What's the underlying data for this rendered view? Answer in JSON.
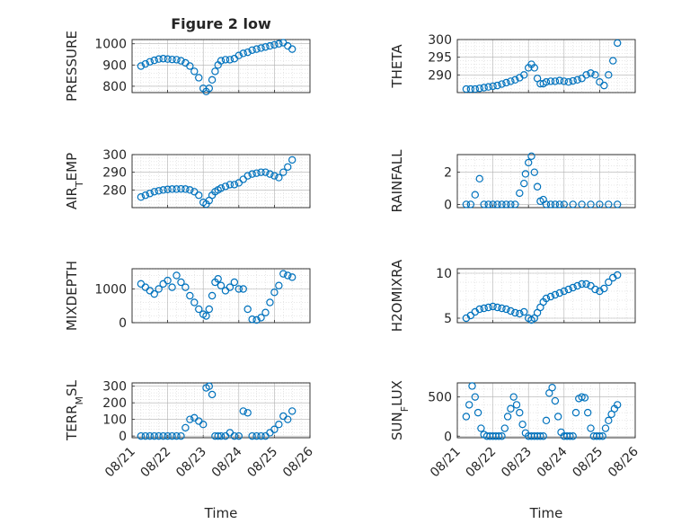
{
  "chart_data": [
    {
      "id": "pressure",
      "type": "scatter",
      "title": "Figure 2 low",
      "xlabel": "",
      "ylabel": "PRESSURE",
      "ylabel_sub": "",
      "ylabel_tail": "",
      "xlim": [
        "08/21",
        "08/26"
      ],
      "ylim": [
        770,
        1020
      ],
      "yticks": [
        800,
        900,
        1000
      ],
      "xticklabels": [
        "08/21",
        "08/22",
        "08/23",
        "08/24",
        "08/25",
        "08/26"
      ],
      "xticks_visible": false,
      "x": [
        "08/21 06:00",
        "08/21 09:00",
        "08/21 12:00",
        "08/21 15:00",
        "08/21 18:00",
        "08/21 21:00",
        "08/22 00:00",
        "08/22 03:00",
        "08/22 06:00",
        "08/22 09:00",
        "08/22 12:00",
        "08/22 15:00",
        "08/22 18:00",
        "08/22 21:00",
        "08/23 00:00",
        "08/23 02:00",
        "08/23 04:00",
        "08/23 06:00",
        "08/23 08:00",
        "08/23 10:00",
        "08/23 12:00",
        "08/23 15:00",
        "08/23 18:00",
        "08/23 21:00",
        "08/24 00:00",
        "08/24 03:00",
        "08/24 06:00",
        "08/24 09:00",
        "08/24 12:00",
        "08/24 15:00",
        "08/24 18:00",
        "08/24 21:00",
        "08/25 00:00",
        "08/25 03:00",
        "08/25 06:00",
        "08/25 09:00",
        "08/25 12:00"
      ],
      "y": [
        895,
        905,
        915,
        922,
        928,
        930,
        928,
        926,
        925,
        920,
        910,
        895,
        870,
        840,
        790,
        775,
        790,
        830,
        870,
        900,
        920,
        925,
        925,
        930,
        945,
        955,
        960,
        970,
        975,
        980,
        985,
        990,
        995,
        1000,
        1005,
        990,
        975
      ]
    },
    {
      "id": "theta",
      "type": "scatter",
      "title": "",
      "xlabel": "",
      "ylabel": "THETA",
      "ylabel_sub": "",
      "ylabel_tail": "",
      "xlim": [
        "08/21",
        "08/26"
      ],
      "ylim": [
        285,
        300
      ],
      "yticks": [
        290,
        295,
        300
      ],
      "xticklabels": [
        "08/21",
        "08/22",
        "08/23",
        "08/24",
        "08/25",
        "08/26"
      ],
      "xticks_visible": false,
      "x": [
        "08/21 06:00",
        "08/21 09:00",
        "08/21 12:00",
        "08/21 15:00",
        "08/21 18:00",
        "08/21 21:00",
        "08/22 00:00",
        "08/22 03:00",
        "08/22 06:00",
        "08/22 09:00",
        "08/22 12:00",
        "08/22 15:00",
        "08/22 18:00",
        "08/22 21:00",
        "08/23 00:00",
        "08/23 02:00",
        "08/23 04:00",
        "08/23 06:00",
        "08/23 08:00",
        "08/23 10:00",
        "08/23 12:00",
        "08/23 15:00",
        "08/23 18:00",
        "08/23 21:00",
        "08/24 00:00",
        "08/24 03:00",
        "08/24 06:00",
        "08/24 09:00",
        "08/24 12:00",
        "08/24 15:00",
        "08/24 18:00",
        "08/24 21:00",
        "08/25 00:00",
        "08/25 03:00",
        "08/25 06:00",
        "08/25 09:00",
        "08/25 12:00"
      ],
      "y": [
        286,
        286,
        286,
        286.2,
        286.4,
        286.6,
        286.8,
        287,
        287.4,
        287.8,
        288.2,
        288.6,
        289.2,
        290,
        292,
        293,
        292,
        289,
        287.5,
        287.5,
        288,
        288.2,
        288.2,
        288.4,
        288.2,
        288,
        288.3,
        288.6,
        289,
        290,
        290.5,
        290,
        288,
        287,
        290,
        294,
        299
      ]
    },
    {
      "id": "air_temp",
      "type": "scatter",
      "title": "",
      "xlabel": "",
      "ylabel": "AIR",
      "ylabel_sub": "T",
      "ylabel_tail": "EMP",
      "xlim": [
        "08/21",
        "08/26"
      ],
      "ylim": [
        270,
        300
      ],
      "yticks": [
        280,
        290,
        300
      ],
      "xticklabels": [
        "08/21",
        "08/22",
        "08/23",
        "08/24",
        "08/25",
        "08/26"
      ],
      "xticks_visible": false,
      "x": [
        "08/21 06:00",
        "08/21 09:00",
        "08/21 12:00",
        "08/21 15:00",
        "08/21 18:00",
        "08/21 21:00",
        "08/22 00:00",
        "08/22 03:00",
        "08/22 06:00",
        "08/22 09:00",
        "08/22 12:00",
        "08/22 15:00",
        "08/22 18:00",
        "08/22 21:00",
        "08/23 00:00",
        "08/23 02:00",
        "08/23 04:00",
        "08/23 06:00",
        "08/23 08:00",
        "08/23 10:00",
        "08/23 12:00",
        "08/23 15:00",
        "08/23 18:00",
        "08/23 21:00",
        "08/24 00:00",
        "08/24 03:00",
        "08/24 06:00",
        "08/24 09:00",
        "08/24 12:00",
        "08/24 15:00",
        "08/24 18:00",
        "08/24 21:00",
        "08/25 00:00",
        "08/25 03:00",
        "08/25 06:00",
        "08/25 09:00",
        "08/25 12:00"
      ],
      "y": [
        276,
        277,
        278,
        279,
        279.5,
        280,
        280.3,
        280.5,
        280.5,
        280.6,
        280.5,
        280,
        279,
        277,
        273,
        272,
        274,
        277,
        279,
        280,
        281,
        282,
        283,
        283,
        284,
        286,
        288,
        289,
        289.5,
        290,
        290,
        289,
        288,
        287,
        290,
        293,
        297
      ]
    },
    {
      "id": "rainfall",
      "type": "scatter",
      "title": "",
      "xlabel": "",
      "ylabel": "RAINFALL",
      "ylabel_sub": "",
      "ylabel_tail": "",
      "xlim": [
        "08/21",
        "08/26"
      ],
      "ylim": [
        -0.2,
        3.1
      ],
      "yticks": [
        0,
        2
      ],
      "xticklabels": [
        "08/21",
        "08/22",
        "08/23",
        "08/24",
        "08/25",
        "08/26"
      ],
      "xticks_visible": false,
      "x": [
        "08/21 06:00",
        "08/21 09:00",
        "08/21 12:00",
        "08/21 15:00",
        "08/21 18:00",
        "08/21 21:00",
        "08/22 00:00",
        "08/22 03:00",
        "08/22 06:00",
        "08/22 09:00",
        "08/22 12:00",
        "08/22 15:00",
        "08/22 18:00",
        "08/22 21:00",
        "08/22 22:00",
        "08/23 00:00",
        "08/23 02:00",
        "08/23 04:00",
        "08/23 06:00",
        "08/23 08:00",
        "08/23 10:00",
        "08/23 12:00",
        "08/23 15:00",
        "08/23 18:00",
        "08/23 21:00",
        "08/24 00:00",
        "08/24 06:00",
        "08/24 12:00",
        "08/24 18:00",
        "08/25 00:00",
        "08/25 06:00",
        "08/25 12:00"
      ],
      "y": [
        0,
        0,
        0.6,
        1.6,
        0,
        0,
        0,
        0,
        0,
        0,
        0,
        0,
        0.7,
        1.3,
        1.9,
        2.6,
        3.0,
        2.0,
        1.1,
        0.2,
        0.3,
        0,
        0,
        0,
        0,
        0,
        0,
        0,
        0,
        0,
        0,
        0
      ]
    },
    {
      "id": "mixdepth",
      "type": "scatter",
      "title": "",
      "xlabel": "",
      "ylabel": "MIXDEPTH",
      "ylabel_sub": "",
      "ylabel_tail": "",
      "xlim": [
        "08/21",
        "08/26"
      ],
      "ylim": [
        0,
        1600
      ],
      "yticks": [
        0,
        1000
      ],
      "xticklabels": [
        "08/21",
        "08/22",
        "08/23",
        "08/24",
        "08/25",
        "08/26"
      ],
      "xticks_visible": false,
      "x": [
        "08/21 06:00",
        "08/21 09:00",
        "08/21 12:00",
        "08/21 15:00",
        "08/21 18:00",
        "08/21 21:00",
        "08/22 00:00",
        "08/22 03:00",
        "08/22 06:00",
        "08/22 09:00",
        "08/22 12:00",
        "08/22 15:00",
        "08/22 18:00",
        "08/22 21:00",
        "08/23 00:00",
        "08/23 02:00",
        "08/23 04:00",
        "08/23 06:00",
        "08/23 08:00",
        "08/23 10:00",
        "08/23 12:00",
        "08/23 15:00",
        "08/23 18:00",
        "08/23 21:00",
        "08/24 00:00",
        "08/24 03:00",
        "08/24 06:00",
        "08/24 09:00",
        "08/24 12:00",
        "08/24 15:00",
        "08/24 18:00",
        "08/24 21:00",
        "08/25 00:00",
        "08/25 03:00",
        "08/25 06:00",
        "08/25 09:00",
        "08/25 12:00"
      ],
      "y": [
        1150,
        1050,
        950,
        850,
        1000,
        1150,
        1250,
        1050,
        1400,
        1200,
        1050,
        800,
        600,
        400,
        250,
        200,
        400,
        800,
        1200,
        1300,
        1100,
        950,
        1050,
        1200,
        1000,
        1000,
        400,
        100,
        80,
        150,
        300,
        600,
        900,
        1100,
        1450,
        1400,
        1350
      ]
    },
    {
      "id": "h2omixra",
      "type": "scatter",
      "title": "",
      "xlabel": "",
      "ylabel": "H2OMIXRA",
      "ylabel_sub": "",
      "ylabel_tail": "",
      "xlim": [
        "08/21",
        "08/26"
      ],
      "ylim": [
        4.5,
        10.5
      ],
      "yticks": [
        5,
        10
      ],
      "xticklabels": [
        "08/21",
        "08/22",
        "08/23",
        "08/24",
        "08/25",
        "08/26"
      ],
      "xticks_visible": false,
      "x": [
        "08/21 06:00",
        "08/21 09:00",
        "08/21 12:00",
        "08/21 15:00",
        "08/21 18:00",
        "08/21 21:00",
        "08/22 00:00",
        "08/22 03:00",
        "08/22 06:00",
        "08/22 09:00",
        "08/22 12:00",
        "08/22 15:00",
        "08/22 18:00",
        "08/22 21:00",
        "08/23 00:00",
        "08/23 02:00",
        "08/23 04:00",
        "08/23 06:00",
        "08/23 08:00",
        "08/23 10:00",
        "08/23 12:00",
        "08/23 15:00",
        "08/23 18:00",
        "08/23 21:00",
        "08/24 00:00",
        "08/24 03:00",
        "08/24 06:00",
        "08/24 09:00",
        "08/24 12:00",
        "08/24 15:00",
        "08/24 18:00",
        "08/24 21:00",
        "08/25 00:00",
        "08/25 03:00",
        "08/25 06:00",
        "08/25 09:00",
        "08/25 12:00"
      ],
      "y": [
        5,
        5.3,
        5.7,
        6,
        6.1,
        6.2,
        6.3,
        6.2,
        6.1,
        6,
        5.8,
        5.6,
        5.5,
        5.7,
        5,
        4.8,
        5,
        5.6,
        6.2,
        6.8,
        7.2,
        7.4,
        7.6,
        7.8,
        8,
        8.2,
        8.4,
        8.6,
        8.8,
        8.8,
        8.6,
        8.2,
        8,
        8.3,
        9,
        9.5,
        9.8
      ]
    },
    {
      "id": "terr_msl",
      "type": "scatter",
      "title": "",
      "xlabel": "Time",
      "ylabel": "TERR",
      "ylabel_sub": "M",
      "ylabel_tail": "SL",
      "xlim": [
        "08/21",
        "08/26"
      ],
      "ylim": [
        -10,
        320
      ],
      "yticks": [
        0,
        100,
        200,
        300
      ],
      "xticklabels": [
        "08/21",
        "08/22",
        "08/23",
        "08/24",
        "08/25",
        "08/26"
      ],
      "xticks_visible": true,
      "x": [
        "08/21 06:00",
        "08/21 09:00",
        "08/21 12:00",
        "08/21 15:00",
        "08/21 18:00",
        "08/21 21:00",
        "08/22 00:00",
        "08/22 03:00",
        "08/22 06:00",
        "08/22 09:00",
        "08/22 12:00",
        "08/22 15:00",
        "08/22 18:00",
        "08/22 21:00",
        "08/23 00:00",
        "08/23 02:00",
        "08/23 04:00",
        "08/23 06:00",
        "08/23 08:00",
        "08/23 10:00",
        "08/23 12:00",
        "08/23 15:00",
        "08/23 18:00",
        "08/23 21:00",
        "08/24 00:00",
        "08/24 03:00",
        "08/24 06:00",
        "08/24 09:00",
        "08/24 12:00",
        "08/24 15:00",
        "08/24 18:00",
        "08/24 21:00",
        "08/25 00:00",
        "08/25 03:00",
        "08/25 06:00",
        "08/25 09:00",
        "08/25 12:00"
      ],
      "y": [
        0,
        0,
        0,
        0,
        0,
        0,
        0,
        0,
        0,
        0,
        50,
        100,
        110,
        90,
        70,
        290,
        300,
        250,
        0,
        0,
        0,
        0,
        20,
        0,
        0,
        150,
        140,
        0,
        0,
        0,
        0,
        20,
        40,
        70,
        120,
        100,
        150
      ]
    },
    {
      "id": "sun_flux",
      "type": "scatter",
      "title": "",
      "xlabel": "Time",
      "ylabel": "SUN",
      "ylabel_sub": "F",
      "ylabel_tail": "LUX",
      "xlim": [
        "08/21",
        "08/26"
      ],
      "ylim": [
        -20,
        680
      ],
      "yticks": [
        0,
        500
      ],
      "xticklabels": [
        "08/21",
        "08/22",
        "08/23",
        "08/24",
        "08/25",
        "08/26"
      ],
      "xticks_visible": true,
      "x": [
        "08/21 06:00",
        "08/21 08:00",
        "08/21 10:00",
        "08/21 12:00",
        "08/21 14:00",
        "08/21 16:00",
        "08/21 18:00",
        "08/21 20:00",
        "08/21 22:00",
        "08/22 00:00",
        "08/22 02:00",
        "08/22 04:00",
        "08/22 06:00",
        "08/22 08:00",
        "08/22 10:00",
        "08/22 12:00",
        "08/22 14:00",
        "08/22 16:00",
        "08/22 18:00",
        "08/22 20:00",
        "08/22 22:00",
        "08/23 00:00",
        "08/23 02:00",
        "08/23 04:00",
        "08/23 06:00",
        "08/23 08:00",
        "08/23 10:00",
        "08/23 12:00",
        "08/23 14:00",
        "08/23 16:00",
        "08/23 18:00",
        "08/23 20:00",
        "08/23 22:00",
        "08/24 00:00",
        "08/24 02:00",
        "08/24 04:00",
        "08/24 06:00",
        "08/24 08:00",
        "08/24 10:00",
        "08/24 12:00",
        "08/24 14:00",
        "08/24 16:00",
        "08/24 18:00",
        "08/24 20:00",
        "08/24 22:00",
        "08/25 00:00",
        "08/25 02:00",
        "08/25 04:00",
        "08/25 06:00",
        "08/25 08:00",
        "08/25 10:00",
        "08/25 12:00"
      ],
      "y": [
        250,
        400,
        640,
        500,
        300,
        100,
        20,
        0,
        0,
        0,
        0,
        0,
        0,
        100,
        250,
        350,
        500,
        400,
        300,
        150,
        40,
        0,
        0,
        0,
        0,
        0,
        0,
        200,
        550,
        620,
        450,
        250,
        50,
        0,
        0,
        0,
        0,
        300,
        480,
        500,
        490,
        300,
        100,
        0,
        0,
        0,
        0,
        100,
        200,
        280,
        350,
        400
      ]
    }
  ]
}
